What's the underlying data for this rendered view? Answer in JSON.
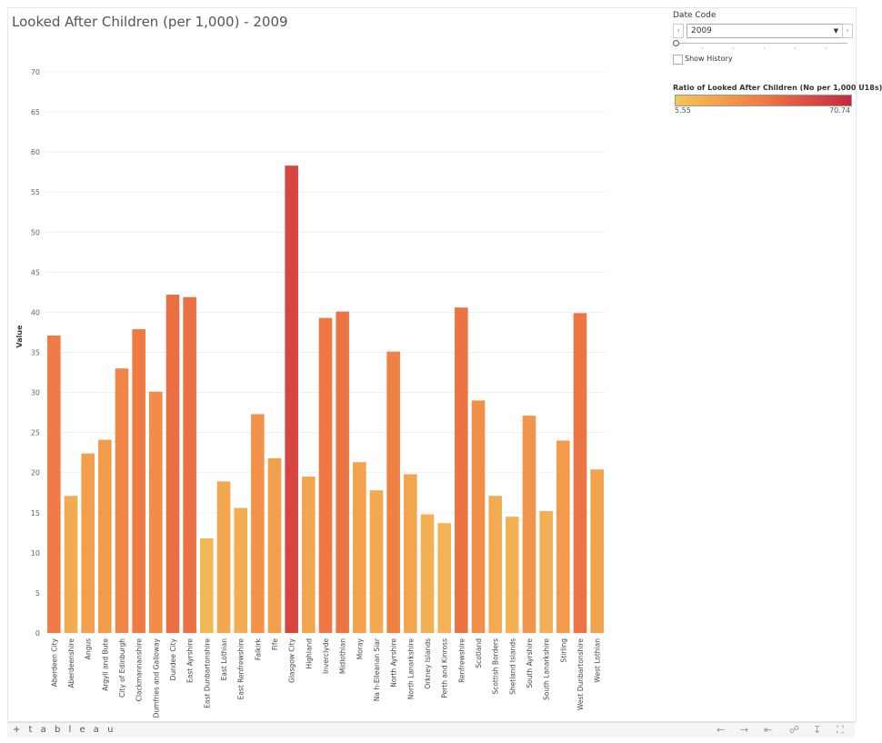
{
  "title": "Looked After Children (per 1,000) - 2009",
  "filter": {
    "label": "Date Code",
    "selected": "2009",
    "prev_icon": "chevron-left-icon",
    "next_icon": "chevron-right-icon",
    "show_history_label": "Show History",
    "show_history_checked": false
  },
  "legend": {
    "title": "Ratio of Looked After Children (No per 1,000 U18s)",
    "min_label": "5.55",
    "max_label": "70.74",
    "min_value": 5.55,
    "max_value": 70.74,
    "colors": [
      "#f2c55c",
      "#f3a04c",
      "#ef7a43",
      "#dd4d42",
      "#c42a3f"
    ]
  },
  "footer": {
    "logo_text": "+ t a b l e a u",
    "icons": [
      "undo-icon",
      "redo-icon",
      "revert-icon",
      "share-icon",
      "download-icon",
      "fullscreen-icon"
    ]
  },
  "chart_data": {
    "type": "bar",
    "title": "Looked After Children (per 1,000) - 2009",
    "xlabel": "",
    "ylabel": "Value",
    "ylim": [
      0,
      70
    ],
    "yticks": [
      0,
      5,
      10,
      15,
      20,
      25,
      30,
      35,
      40,
      45,
      50,
      55,
      60,
      65,
      70
    ],
    "grid": true,
    "categories": [
      "Aberdeen City",
      "Aberdeenshire",
      "Angus",
      "Argyll and Bute",
      "City of Edinburgh",
      "Clackmannanshire",
      "Dumfries and Galloway",
      "Dundee City",
      "East Ayrshire",
      "East Dunbartonshire",
      "East Lothian",
      "East Renfrewshire",
      "Falkirk",
      "Fife",
      "Glasgow City",
      "Highland",
      "Inverclyde",
      "Midlothian",
      "Moray",
      "Na h-Eileanan Siar",
      "North Ayrshire",
      "North Lanarkshire",
      "Orkney Islands",
      "Perth and Kinross",
      "Renfrewshire",
      "Scotland",
      "Scottish Borders",
      "Shetland Islands",
      "South Ayrshire",
      "South Lanarkshire",
      "Stirling",
      "West Dunbartonshire",
      "West Lothian"
    ],
    "values": [
      37.1,
      17.1,
      22.4,
      24.1,
      33.0,
      37.9,
      30.1,
      42.2,
      41.9,
      11.8,
      18.9,
      15.6,
      27.3,
      21.8,
      58.3,
      19.5,
      39.3,
      40.1,
      21.3,
      17.8,
      35.1,
      19.8,
      14.8,
      13.7,
      40.6,
      29.0,
      17.1,
      14.5,
      27.1,
      15.2,
      24.0,
      39.9,
      20.4
    ]
  }
}
